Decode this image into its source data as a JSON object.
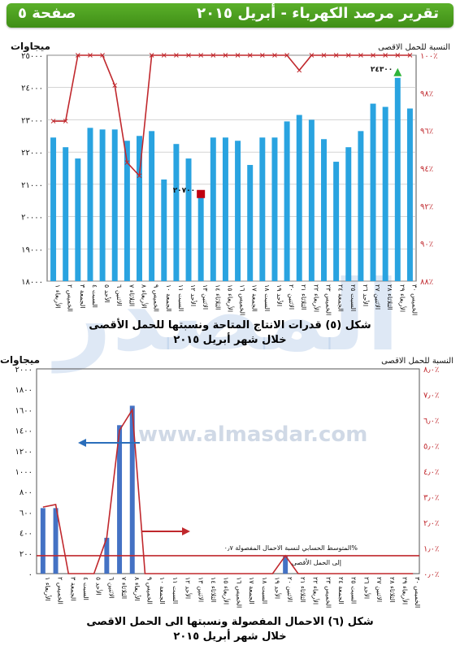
{
  "header": {
    "title": "تقرير مرصد الكهرباء - أبريل ٢٠١٥",
    "page_label": "صفحة ٥",
    "color": "#4aa020"
  },
  "watermark": {
    "text": "المصدر",
    "url": "www.almasdar.com"
  },
  "chart_data": [
    {
      "type": "bar",
      "caption_line1": "شكل (٥) قدرات الانتاج المتاحة  ونسبتها للحمل الأقصى",
      "caption_line2": "خلال شهر أبريل ٢٠١٥",
      "left_axis_title": "ميجاوات",
      "right_axis_title": "النسبة للحمل الاقصى",
      "left_ticks": [
        "١٨٠٠٠",
        "١٩٠٠٠",
        "٢٠٠٠٠",
        "٢١٠٠٠",
        "٢٢٠٠٠",
        "٢٣٠٠٠",
        "٢٤٠٠٠",
        "٢٥٠٠٠"
      ],
      "right_ticks": [
        "٨٨٪",
        "٩٠٪",
        "٩٢٪",
        "٩٤٪",
        "٩٦٪",
        "٩٨٪",
        "١٠٠٪"
      ],
      "ylim": [
        18000,
        25000
      ],
      "y2lim": [
        88,
        100
      ],
      "categories": [
        "الأربعاء ١",
        "الخميس ٢",
        "الجمعة ٣",
        "السبت ٤",
        "الأحد ٥",
        "الاثنين ٦",
        "الثلاثاء ٧",
        "الأربعاء ٨",
        "الخميس ٩",
        "الجمعة ١٠",
        "السبت ١١",
        "الأحد ١٢",
        "الاثنين ١٣",
        "الثلاثاء ١٤",
        "الأربعاء ١٥",
        "الخميس ١٦",
        "الجمعة ١٧",
        "السبت ١٨",
        "الأحد ١٩",
        "الاثنين ٢٠",
        "الثلاثاء ٢١",
        "الأربعاء ٢٢",
        "الخميس ٢٣",
        "الجمعة ٢٤",
        "السبت ٢٥",
        "الأحد ٢٦",
        "الاثنين ٢٧",
        "الثلاثاء ٢٨",
        "الأربعاء ٢٩",
        "الخميس ٣٠"
      ],
      "series": [
        {
          "type": "bar",
          "color": "#29a3e0",
          "values": [
            22450,
            22150,
            21800,
            22750,
            22700,
            22700,
            22350,
            22500,
            22650,
            21150,
            22250,
            21800,
            20700,
            22450,
            22450,
            22350,
            21600,
            22450,
            22450,
            22950,
            23150,
            23000,
            22400,
            21700,
            22150,
            22650,
            23500,
            23400,
            24300,
            23350
          ]
        },
        {
          "type": "line",
          "color": "#c0282d",
          "values": [
            96.5,
            96.5,
            100,
            100,
            100,
            98.4,
            94.3,
            93.6,
            100,
            100,
            100,
            100,
            100,
            100,
            100,
            100,
            100,
            100,
            100,
            100,
            99.2,
            100,
            100,
            100,
            100,
            100,
            100,
            100,
            100,
            100
          ]
        }
      ],
      "annotations": {
        "max_label": "٢٤٣٠٠",
        "max_color": "#2fb43a",
        "min_label": "٢٠٧٠٠",
        "min_color": "#c0000f"
      }
    },
    {
      "type": "bar",
      "caption_line1": "شكل (٦) الاحمال المفصولة ونسبتها الى الحمل الاقصى",
      "caption_line2": "خلال شهر أبريل ٢٠١٥",
      "left_axis_title": "ميجاوات",
      "right_axis_title": "النسبة للحمل الاقصى",
      "left_ticks": [
        "٠",
        "٢٠٠",
        "٤٠٠",
        "٦٠٠",
        "٨٠٠",
        "١٠٠٠",
        "١٢٠٠",
        "١٤٠٠",
        "١٦٠٠",
        "١٨٠٠",
        "٢٠٠٠"
      ],
      "right_ticks": [
        "٠٫٠٪",
        "١٫٠٪",
        "٢٫٠٪",
        "٣٫٠٪",
        "٤٫٠٪",
        "٥٫٠٪",
        "٦٫٠٪",
        "٧٫٠٪",
        "٨٫٠٪"
      ],
      "ylim": [
        0,
        2000
      ],
      "y2lim": [
        0,
        8
      ],
      "categories": [
        "الأربعاء ١",
        "الخميس ٢",
        "الجمعة ٣",
        "السبت ٤",
        "الأحد ٥",
        "الاثنين ٦",
        "الثلاثاء ٧",
        "الأربعاء ٨",
        "الخميس ٩",
        "الجمعة ١٠",
        "السبت ١١",
        "الأحد ١٢",
        "الاثنين ١٣",
        "الثلاثاء ١٤",
        "الأربعاء ١٥",
        "الخميس ١٦",
        "الجمعة ١٧",
        "السبت ١٨",
        "الأحد ١٩",
        "الاثنين ٢٠",
        "الثلاثاء ٢١",
        "الأربعاء ٢٢",
        "الخميس ٢٣",
        "الجمعة ٢٤",
        "السبت ٢٥",
        "الأحد ٢٦",
        "الاثنين ٢٧",
        "الثلاثاء ٢٨",
        "الأربعاء ٢٩",
        "الخميس ٣٠"
      ],
      "series": [
        {
          "type": "bar",
          "color": "#4472c4",
          "values": [
            640,
            640,
            0,
            0,
            0,
            350,
            1450,
            1640,
            0,
            0,
            0,
            0,
            0,
            0,
            0,
            0,
            0,
            0,
            0,
            170,
            0,
            0,
            0,
            0,
            0,
            0,
            0,
            0,
            0,
            0
          ]
        },
        {
          "type": "line",
          "color": "#c0282d",
          "values": [
            2.6,
            2.7,
            0,
            0,
            0,
            1.4,
            5.6,
            6.4,
            0,
            0,
            0,
            0,
            0,
            0,
            0,
            0,
            0,
            0,
            0,
            0.7,
            0,
            0,
            0,
            0,
            0,
            0,
            0,
            0,
            0,
            0
          ]
        }
      ],
      "average_line": {
        "value": 0.7,
        "label": "المتوسط الحسابي لنسبة الاحمال المفصولة ٠٫٧%",
        "sublabel": "إلى الحمل الأقصى"
      }
    }
  ]
}
